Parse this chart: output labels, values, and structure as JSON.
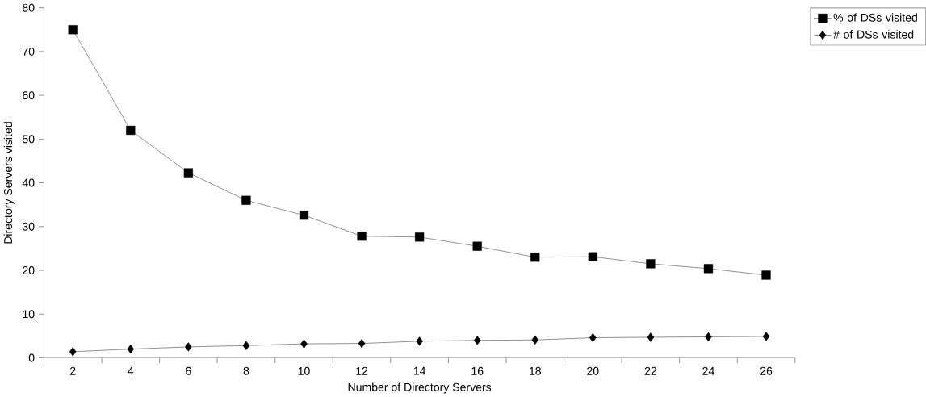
{
  "chart_data": {
    "type": "line",
    "xlabel": "Number of Directory Servers",
    "ylabel": "Directory Servers visited",
    "categories": [
      "2",
      "4",
      "6",
      "8",
      "10",
      "12",
      "14",
      "16",
      "18",
      "20",
      "22",
      "24",
      "26"
    ],
    "series": [
      {
        "name": "% of DSs visited",
        "color": "#000000",
        "marker": "square",
        "values": [
          75,
          52,
          42.3,
          36,
          32.6,
          27.8,
          27.6,
          25.5,
          23,
          23.1,
          21.5,
          20.4,
          18.9
        ]
      },
      {
        "name": "# of DSs visited",
        "color": "#000000",
        "marker": "diamond",
        "values": [
          1.4,
          2,
          2.5,
          2.8,
          3.2,
          3.3,
          3.8,
          4.0,
          4.1,
          4.6,
          4.7,
          4.8,
          4.9
        ]
      }
    ],
    "ylim": [
      0,
      80
    ],
    "yticks": [
      0,
      10,
      20,
      30,
      40,
      50,
      60,
      70,
      80
    ],
    "grid": false,
    "legend": "top right",
    "line_style": "solid"
  }
}
